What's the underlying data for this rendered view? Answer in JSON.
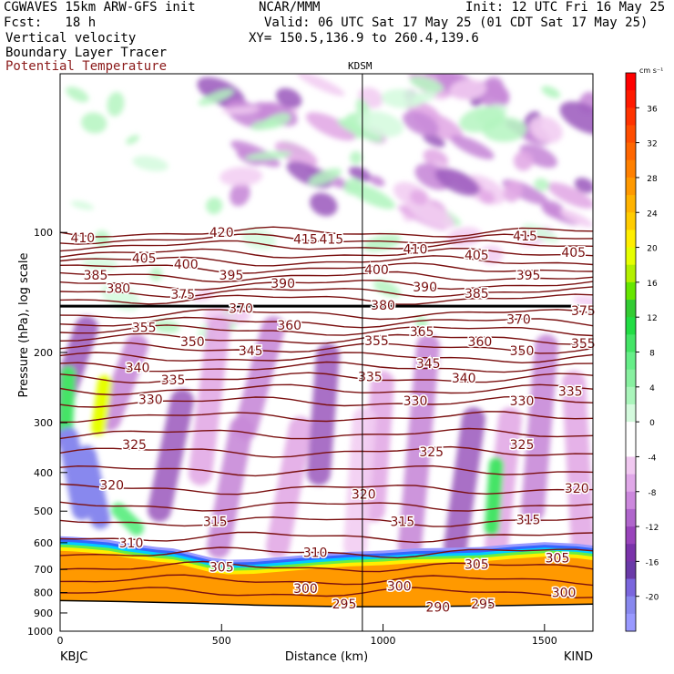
{
  "header": {
    "model": "CGWAVES 15km ARW-GFS init",
    "org": "NCAR/MMM",
    "init": "Init: 12 UTC Fri 16 May 25",
    "fcst": "Fcst:   18 h",
    "valid": "Valid: 06 UTC Sat 17 May 25 (01 CDT Sat 17 May 25)",
    "field1": "Vertical velocity",
    "field2": "Boundary Layer Tracer",
    "field3": "Potential Temperature",
    "xy": "XY= 150.5,136.9 to 260.4,139.6",
    "field3_color": "#8b1a1a"
  },
  "chart_data": {
    "type": "heatmap",
    "xlabel": "Distance (km)",
    "ylabel": "Pressure (hPa), log scale",
    "xlim": [
      0,
      1650
    ],
    "ylim": [
      1000,
      40
    ],
    "x_ticks": [
      "0",
      "500",
      "1000",
      "1500"
    ],
    "x_tick_values": [
      0,
      500,
      1000,
      1500
    ],
    "y_ticks": [
      "100",
      "200",
      "300",
      "400",
      "500",
      "600",
      "700",
      "800",
      "900",
      "1000"
    ],
    "y_tick_values": [
      100,
      200,
      300,
      400,
      500,
      600,
      700,
      800,
      900,
      1000
    ],
    "station_left": "KBJC",
    "station_right": "KIND",
    "station_mid": "KDSM",
    "station_mid_x": 936,
    "tropopause_p": 153,
    "colorbar": {
      "unit": "cm s⁻¹",
      "labels": [
        "36",
        "32",
        "28",
        "24",
        "20",
        "16",
        "12",
        "8",
        "4",
        "0",
        "-4",
        "-8",
        "-12",
        "-16",
        "-20"
      ],
      "bins": [
        {
          "lo": 40,
          "color": "#ff0000"
        },
        {
          "lo": 38,
          "color": "#ff1a00"
        },
        {
          "lo": 36,
          "color": "#ff3300"
        },
        {
          "lo": 34,
          "color": "#ff4d00"
        },
        {
          "lo": 32,
          "color": "#ff6600"
        },
        {
          "lo": 30,
          "color": "#ff8000"
        },
        {
          "lo": 28,
          "color": "#ff9900"
        },
        {
          "lo": 26,
          "color": "#ffb300"
        },
        {
          "lo": 24,
          "color": "#ffcc00"
        },
        {
          "lo": 22,
          "color": "#ffee00"
        },
        {
          "lo": 20,
          "color": "#e6ff00"
        },
        {
          "lo": 18,
          "color": "#b3f000"
        },
        {
          "lo": 16,
          "color": "#66e600"
        },
        {
          "lo": 14,
          "color": "#33cc33"
        },
        {
          "lo": 12,
          "color": "#22dd44"
        },
        {
          "lo": 10,
          "color": "#44e466"
        },
        {
          "lo": 8,
          "color": "#66ee88"
        },
        {
          "lo": 6,
          "color": "#88f0a0"
        },
        {
          "lo": 4,
          "color": "#aaf5bb"
        },
        {
          "lo": 2,
          "color": "#d4fadd"
        },
        {
          "lo": 0,
          "color": "#ffffff"
        },
        {
          "lo": -2,
          "color": "#ffffff"
        },
        {
          "lo": -4,
          "color": "#f0c8f0"
        },
        {
          "lo": -6,
          "color": "#e0a8e8"
        },
        {
          "lo": -8,
          "color": "#cc88dd"
        },
        {
          "lo": -10,
          "color": "#b066cc"
        },
        {
          "lo": -12,
          "color": "#9944bb"
        },
        {
          "lo": -14,
          "color": "#7a33aa"
        },
        {
          "lo": -16,
          "color": "#6a3aa8"
        },
        {
          "lo": -18,
          "color": "#7a66dd"
        },
        {
          "lo": -20,
          "color": "#8888ee"
        },
        {
          "lo": -22,
          "color": "#9999ff"
        }
      ]
    },
    "theta_labels": [
      {
        "v": "410",
        "x": 70,
        "p": 103
      },
      {
        "v": "420",
        "x": 500,
        "p": 100
      },
      {
        "v": "415",
        "x": 760,
        "p": 104
      },
      {
        "v": "415",
        "x": 840,
        "p": 104
      },
      {
        "v": "415",
        "x": 1440,
        "p": 102
      },
      {
        "v": "410",
        "x": 1100,
        "p": 110
      },
      {
        "v": "405",
        "x": 260,
        "p": 116
      },
      {
        "v": "405",
        "x": 1290,
        "p": 114
      },
      {
        "v": "405",
        "x": 1590,
        "p": 112
      },
      {
        "v": "400",
        "x": 390,
        "p": 120
      },
      {
        "v": "400",
        "x": 980,
        "p": 124
      },
      {
        "v": "395",
        "x": 530,
        "p": 128
      },
      {
        "v": "395",
        "x": 1450,
        "p": 128
      },
      {
        "v": "390",
        "x": 690,
        "p": 134
      },
      {
        "v": "390",
        "x": 1130,
        "p": 137
      },
      {
        "v": "385",
        "x": 110,
        "p": 128
      },
      {
        "v": "385",
        "x": 1290,
        "p": 142
      },
      {
        "v": "380",
        "x": 180,
        "p": 138
      },
      {
        "v": "380",
        "x": 1000,
        "p": 152
      },
      {
        "v": "375",
        "x": 380,
        "p": 143
      },
      {
        "v": "375",
        "x": 1620,
        "p": 157
      },
      {
        "v": "370",
        "x": 560,
        "p": 155
      },
      {
        "v": "370",
        "x": 1420,
        "p": 165
      },
      {
        "v": "365",
        "x": 1120,
        "p": 177
      },
      {
        "v": "360",
        "x": 710,
        "p": 171
      },
      {
        "v": "360",
        "x": 1300,
        "p": 188
      },
      {
        "v": "355",
        "x": 260,
        "p": 173
      },
      {
        "v": "355",
        "x": 980,
        "p": 187
      },
      {
        "v": "355",
        "x": 1620,
        "p": 190
      },
      {
        "v": "350",
        "x": 410,
        "p": 188
      },
      {
        "v": "350",
        "x": 1430,
        "p": 198
      },
      {
        "v": "345",
        "x": 590,
        "p": 198
      },
      {
        "v": "345",
        "x": 1140,
        "p": 213
      },
      {
        "v": "340",
        "x": 240,
        "p": 218
      },
      {
        "v": "340",
        "x": 1250,
        "p": 232
      },
      {
        "v": "335",
        "x": 350,
        "p": 234
      },
      {
        "v": "335",
        "x": 960,
        "p": 230
      },
      {
        "v": "335",
        "x": 1580,
        "p": 250
      },
      {
        "v": "330",
        "x": 280,
        "p": 262
      },
      {
        "v": "330",
        "x": 1100,
        "p": 264
      },
      {
        "v": "330",
        "x": 1430,
        "p": 264
      },
      {
        "v": "325",
        "x": 230,
        "p": 340
      },
      {
        "v": "325",
        "x": 1150,
        "p": 355
      },
      {
        "v": "325",
        "x": 1430,
        "p": 340
      },
      {
        "v": "320",
        "x": 160,
        "p": 430
      },
      {
        "v": "320",
        "x": 940,
        "p": 453
      },
      {
        "v": "320",
        "x": 1600,
        "p": 438
      },
      {
        "v": "315",
        "x": 480,
        "p": 530
      },
      {
        "v": "315",
        "x": 1060,
        "p": 530
      },
      {
        "v": "315",
        "x": 1450,
        "p": 525
      },
      {
        "v": "310",
        "x": 220,
        "p": 600
      },
      {
        "v": "310",
        "x": 790,
        "p": 635
      },
      {
        "v": "305",
        "x": 500,
        "p": 690
      },
      {
        "v": "305",
        "x": 1290,
        "p": 680
      },
      {
        "v": "305",
        "x": 1540,
        "p": 655
      },
      {
        "v": "300",
        "x": 760,
        "p": 780
      },
      {
        "v": "300",
        "x": 1050,
        "p": 770
      },
      {
        "v": "300",
        "x": 1560,
        "p": 800
      },
      {
        "v": "295",
        "x": 880,
        "p": 853
      },
      {
        "v": "295",
        "x": 1310,
        "p": 855
      },
      {
        "v": "290",
        "x": 1170,
        "p": 870
      }
    ]
  }
}
